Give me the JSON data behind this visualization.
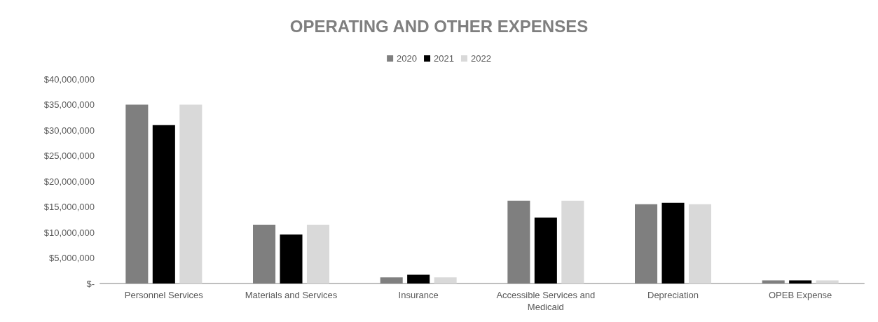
{
  "chart_data": {
    "type": "bar",
    "title": "OPERATING AND OTHER EXPENSES",
    "categories": [
      "Personnel Services",
      "Materials and Services",
      "Insurance",
      "Accessible Services and\nMedicaid",
      "Depreciation",
      "OPEB Expense"
    ],
    "series": [
      {
        "name": "2020",
        "color": "#7f7f7f",
        "values": [
          35000000,
          11500000,
          1200000,
          16200000,
          15500000,
          600000
        ]
      },
      {
        "name": "2021",
        "color": "#000000",
        "values": [
          31000000,
          9600000,
          1700000,
          12900000,
          15800000,
          600000
        ]
      },
      {
        "name": "2022",
        "color": "#d9d9d9",
        "values": [
          35000000,
          11500000,
          1200000,
          16200000,
          15500000,
          600000
        ]
      }
    ],
    "ylim": [
      0,
      40000000
    ],
    "yticks": [
      {
        "value": 0,
        "label": "$-"
      },
      {
        "value": 5000000,
        "label": "$5,000,000"
      },
      {
        "value": 10000000,
        "label": "$10,000,000"
      },
      {
        "value": 15000000,
        "label": "$15,000,000"
      },
      {
        "value": 20000000,
        "label": "$20,000,000"
      },
      {
        "value": 25000000,
        "label": "$25,000,000"
      },
      {
        "value": 30000000,
        "label": "$30,000,000"
      },
      {
        "value": 35000000,
        "label": "$35,000,000"
      },
      {
        "value": 40000000,
        "label": "$40,000,000"
      }
    ],
    "grid": false,
    "legend": "top"
  }
}
